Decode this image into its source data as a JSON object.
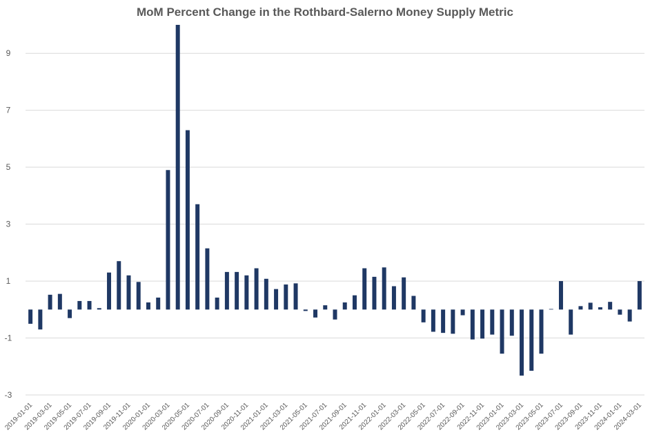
{
  "chart_data": {
    "type": "bar",
    "title": "MoM Percent Change in the Rothbard-Salerno Money Supply Metric",
    "xlabel": "",
    "ylabel": "",
    "ylim": [
      -3,
      10
    ],
    "y_ticks": [
      -3,
      -1,
      1,
      3,
      5,
      7,
      9
    ],
    "grid": true,
    "legend": "none",
    "bar_color": "#1f3864",
    "grid_color": "#d9d9d9",
    "categories": [
      "2019-01-01",
      "2019-02-01",
      "2019-03-01",
      "2019-04-01",
      "2019-05-01",
      "2019-06-01",
      "2019-07-01",
      "2019-08-01",
      "2019-09-01",
      "2019-10-01",
      "2019-11-01",
      "2019-12-01",
      "2020-01-01",
      "2020-02-01",
      "2020-03-01",
      "2020-04-01",
      "2020-05-01",
      "2020-06-01",
      "2020-07-01",
      "2020-08-01",
      "2020-09-01",
      "2020-10-01",
      "2020-11-01",
      "2020-12-01",
      "2021-01-01",
      "2021-02-01",
      "2021-03-01",
      "2021-04-01",
      "2021-05-01",
      "2021-06-01",
      "2021-07-01",
      "2021-08-01",
      "2021-09-01",
      "2021-10-01",
      "2021-11-01",
      "2021-12-01",
      "2022-01-01",
      "2022-02-01",
      "2022-03-01",
      "2022-04-01",
      "2022-05-01",
      "2022-06-01",
      "2022-07-01",
      "2022-08-01",
      "2022-09-01",
      "2022-10-01",
      "2022-11-01",
      "2022-12-01",
      "2023-01-01",
      "2023-02-01",
      "2023-03-01",
      "2023-04-01",
      "2023-05-01",
      "2023-06-01",
      "2023-07-01",
      "2023-08-01",
      "2023-09-01",
      "2023-10-01",
      "2023-11-01",
      "2023-12-01",
      "2024-01-01",
      "2024-02-01",
      "2024-03-01"
    ],
    "x_tick_labels": [
      "2019-01-01",
      "2019-03-01",
      "2019-05-01",
      "2019-07-01",
      "2019-09-01",
      "2019-11-01",
      "2020-01-01",
      "2020-03-01",
      "2020-05-01",
      "2020-07-01",
      "2020-09-01",
      "2020-11-01",
      "2021-01-01",
      "2021-03-01",
      "2021-05-01",
      "2021-07-01",
      "2021-09-01",
      "2021-11-01",
      "2022-01-01",
      "2022-03-01",
      "2022-05-01",
      "2022-07-01",
      "2022-09-01",
      "2022-11-01",
      "2023-01-01",
      "2023-03-01",
      "2023-05-01",
      "2023-07-01",
      "2023-09-01",
      "2023-11-01",
      "2024-01-01",
      "2024-03-01"
    ],
    "values": [
      -0.5,
      -0.7,
      0.52,
      0.55,
      -0.3,
      0.3,
      0.3,
      0.05,
      1.3,
      1.7,
      1.2,
      0.97,
      0.25,
      0.42,
      4.9,
      10.0,
      6.3,
      3.7,
      2.15,
      0.42,
      1.32,
      1.32,
      1.2,
      1.45,
      1.08,
      0.72,
      0.88,
      0.92,
      -0.05,
      -0.28,
      0.15,
      -0.35,
      0.25,
      0.5,
      1.45,
      1.15,
      1.48,
      0.82,
      1.13,
      0.48,
      -0.45,
      -0.78,
      -0.82,
      -0.85,
      -0.2,
      -1.05,
      -1.02,
      -0.88,
      -1.55,
      -0.92,
      -2.32,
      -2.15,
      -1.55,
      0.02,
      1.0,
      -0.88,
      0.12,
      0.24,
      0.08,
      0.27,
      -0.18,
      -0.42,
      1.0
    ]
  }
}
